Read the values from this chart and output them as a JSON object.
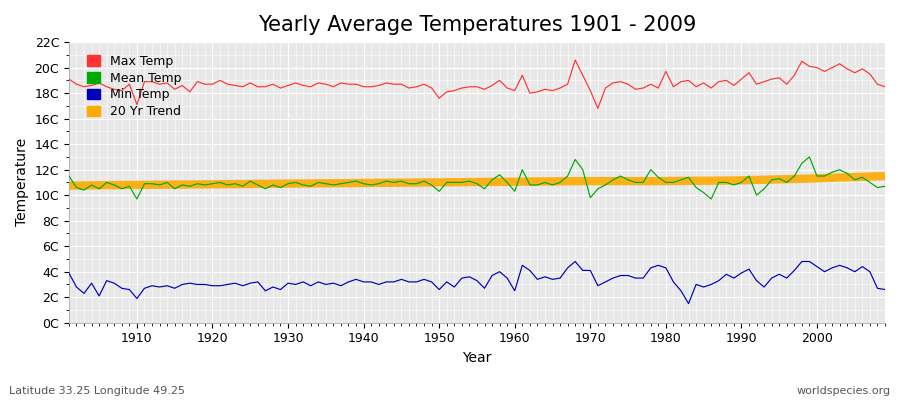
{
  "title": "Yearly Average Temperatures 1901 - 2009",
  "xlabel": "Year",
  "ylabel": "Temperature",
  "subtitle_left": "Latitude 33.25 Longitude 49.25",
  "subtitle_right": "worldspecies.org",
  "years": [
    1901,
    1902,
    1903,
    1904,
    1905,
    1906,
    1907,
    1908,
    1909,
    1910,
    1911,
    1912,
    1913,
    1914,
    1915,
    1916,
    1917,
    1918,
    1919,
    1920,
    1921,
    1922,
    1923,
    1924,
    1925,
    1926,
    1927,
    1928,
    1929,
    1930,
    1931,
    1932,
    1933,
    1934,
    1935,
    1936,
    1937,
    1938,
    1939,
    1940,
    1941,
    1942,
    1943,
    1944,
    1945,
    1946,
    1947,
    1948,
    1949,
    1950,
    1951,
    1952,
    1953,
    1954,
    1955,
    1956,
    1957,
    1958,
    1959,
    1960,
    1961,
    1962,
    1963,
    1964,
    1965,
    1966,
    1967,
    1968,
    1969,
    1970,
    1971,
    1972,
    1973,
    1974,
    1975,
    1976,
    1977,
    1978,
    1979,
    1980,
    1981,
    1982,
    1983,
    1984,
    1985,
    1986,
    1987,
    1988,
    1989,
    1990,
    1991,
    1992,
    1993,
    1994,
    1995,
    1996,
    1997,
    1998,
    1999,
    2000,
    2001,
    2002,
    2003,
    2004,
    2005,
    2006,
    2007,
    2008,
    2009
  ],
  "max_temp": [
    19.1,
    18.7,
    18.5,
    18.6,
    18.8,
    18.5,
    18.3,
    18.2,
    18.7,
    17.1,
    18.9,
    18.9,
    18.7,
    18.8,
    18.3,
    18.6,
    18.1,
    18.9,
    18.7,
    18.7,
    19.0,
    18.7,
    18.6,
    18.5,
    18.8,
    18.5,
    18.5,
    18.7,
    18.4,
    18.6,
    18.8,
    18.6,
    18.5,
    18.8,
    18.7,
    18.5,
    18.8,
    18.7,
    18.7,
    18.5,
    18.5,
    18.6,
    18.8,
    18.7,
    18.7,
    18.4,
    18.5,
    18.7,
    18.4,
    17.6,
    18.1,
    18.2,
    18.4,
    18.5,
    18.5,
    18.3,
    18.6,
    19.0,
    18.4,
    18.2,
    19.4,
    18.0,
    18.1,
    18.3,
    18.2,
    18.4,
    18.7,
    20.6,
    19.4,
    18.2,
    16.8,
    18.4,
    18.8,
    18.9,
    18.7,
    18.3,
    18.4,
    18.7,
    18.4,
    19.7,
    18.5,
    18.9,
    19.0,
    18.5,
    18.8,
    18.4,
    18.9,
    19.0,
    18.6,
    19.1,
    19.6,
    18.7,
    18.9,
    19.1,
    19.2,
    18.7,
    19.4,
    20.5,
    20.1,
    20.0,
    19.7,
    20.0,
    20.3,
    19.9,
    19.6,
    19.9,
    19.5,
    18.7,
    18.5
  ],
  "mean_temp": [
    11.5,
    10.6,
    10.4,
    10.8,
    10.5,
    11.0,
    10.8,
    10.5,
    10.7,
    9.7,
    10.9,
    10.9,
    10.8,
    11.0,
    10.5,
    10.8,
    10.7,
    10.9,
    10.8,
    10.9,
    11.0,
    10.8,
    10.9,
    10.7,
    11.1,
    10.8,
    10.5,
    10.8,
    10.6,
    10.9,
    11.0,
    10.8,
    10.7,
    11.0,
    10.9,
    10.8,
    10.9,
    11.0,
    11.1,
    10.9,
    10.8,
    10.9,
    11.1,
    11.0,
    11.1,
    10.9,
    10.9,
    11.1,
    10.8,
    10.3,
    11.0,
    11.0,
    11.0,
    11.1,
    10.9,
    10.5,
    11.2,
    11.6,
    11.0,
    10.3,
    12.0,
    10.8,
    10.8,
    11.0,
    10.8,
    11.0,
    11.5,
    12.8,
    12.0,
    9.8,
    10.5,
    10.8,
    11.2,
    11.5,
    11.2,
    11.0,
    11.0,
    12.0,
    11.4,
    11.0,
    11.0,
    11.2,
    11.4,
    10.6,
    10.2,
    9.7,
    11.0,
    11.0,
    10.8,
    11.0,
    11.5,
    10.0,
    10.5,
    11.2,
    11.3,
    11.0,
    11.5,
    12.5,
    13.0,
    11.5,
    11.5,
    11.8,
    12.0,
    11.7,
    11.2,
    11.4,
    11.0,
    10.6,
    10.7
  ],
  "min_temp": [
    3.9,
    2.8,
    2.3,
    3.1,
    2.1,
    3.3,
    3.1,
    2.7,
    2.6,
    1.9,
    2.7,
    2.9,
    2.8,
    2.9,
    2.7,
    3.0,
    3.1,
    3.0,
    3.0,
    2.9,
    2.9,
    3.0,
    3.1,
    2.9,
    3.1,
    3.2,
    2.5,
    2.8,
    2.6,
    3.1,
    3.0,
    3.2,
    2.9,
    3.2,
    3.0,
    3.1,
    2.9,
    3.2,
    3.4,
    3.2,
    3.2,
    3.0,
    3.2,
    3.2,
    3.4,
    3.2,
    3.2,
    3.4,
    3.2,
    2.6,
    3.2,
    2.8,
    3.5,
    3.6,
    3.3,
    2.7,
    3.7,
    4.0,
    3.5,
    2.5,
    4.5,
    4.1,
    3.4,
    3.6,
    3.4,
    3.5,
    4.3,
    4.8,
    4.1,
    4.1,
    2.9,
    3.2,
    3.5,
    3.7,
    3.7,
    3.5,
    3.5,
    4.3,
    4.5,
    4.3,
    3.2,
    2.5,
    1.5,
    3.0,
    2.8,
    3.0,
    3.3,
    3.8,
    3.5,
    3.9,
    4.2,
    3.3,
    2.8,
    3.5,
    3.8,
    3.5,
    4.1,
    4.8,
    4.8,
    4.4,
    4.0,
    4.3,
    4.5,
    4.3,
    4.0,
    4.4,
    4.0,
    2.7,
    2.6
  ],
  "trend_x": [
    1901,
    1909,
    1919,
    1929,
    1939,
    1949,
    1959,
    1969,
    1979,
    1989,
    1999,
    2009
  ],
  "trend_y": [
    10.75,
    10.8,
    10.85,
    10.9,
    10.95,
    11.0,
    11.05,
    11.1,
    11.1,
    11.15,
    11.3,
    11.5
  ],
  "bg_color": "#ffffff",
  "plot_bg_color": "#e8e8e8",
  "grid_color": "#ffffff",
  "max_color": "#ff3333",
  "mean_color": "#00aa00",
  "min_color": "#0000bb",
  "trend_color": "#ffaa00",
  "ylim_min": 0,
  "ylim_max": 22,
  "ytick_step": 2,
  "title_fontsize": 15,
  "axis_label_fontsize": 10,
  "tick_label_fontsize": 9,
  "legend_fontsize": 9,
  "legend_marker_size": 10
}
